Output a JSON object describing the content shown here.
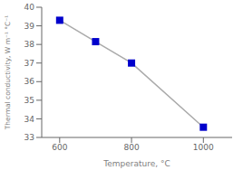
{
  "chart_data": {
    "type": "line",
    "x": [
      600,
      700,
      800,
      1000
    ],
    "values": [
      39.3,
      38.15,
      37.0,
      33.55
    ],
    "xlabel": "Temperature, °C",
    "ylabel": "Thermal conductivity, W m⁻¹ °C⁻¹",
    "xlim": [
      550,
      1080
    ],
    "ylim": [
      33,
      40
    ],
    "xticks": [
      600,
      800,
      1000
    ],
    "yticks": [
      33,
      34,
      35,
      36,
      37,
      38,
      39,
      40
    ],
    "color": "#aaaaaa",
    "colors": [
      "#0000cc",
      "#0000cc",
      "#0000cc",
      "#0000cc"
    ],
    "marker": "square",
    "line_style": "solid",
    "grid": false
  }
}
